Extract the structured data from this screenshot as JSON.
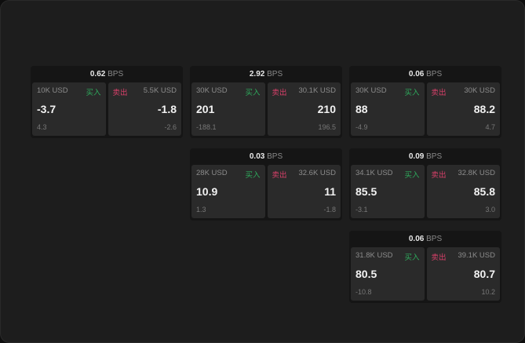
{
  "labels": {
    "buy": "买入",
    "sell": "卖出",
    "unit": "BPS"
  },
  "colors": {
    "buy": "#2eaa5c",
    "sell": "#d8406a"
  },
  "cards": [
    {
      "bps": "0.62",
      "buy": {
        "size": "10K USD",
        "price": "-3.7",
        "change": "4.3"
      },
      "sell": {
        "size": "5.5K USD",
        "price": "-1.8",
        "change": "-2.6"
      }
    },
    {
      "bps": "2.92",
      "buy": {
        "size": "30K USD",
        "price": "201",
        "change": "-188.1"
      },
      "sell": {
        "size": "30.1K USD",
        "price": "210",
        "change": "196.5"
      }
    },
    {
      "bps": "0.06",
      "buy": {
        "size": "30K USD",
        "price": "88",
        "change": "-4.9"
      },
      "sell": {
        "size": "30K USD",
        "price": "88.2",
        "change": "4.7"
      }
    },
    {
      "bps": "0.03",
      "buy": {
        "size": "28K USD",
        "price": "10.9",
        "change": "1.3"
      },
      "sell": {
        "size": "32.6K USD",
        "price": "11",
        "change": "-1.8"
      }
    },
    {
      "bps": "0.09",
      "buy": {
        "size": "34.1K USD",
        "price": "85.5",
        "change": "-3.1"
      },
      "sell": {
        "size": "32.8K USD",
        "price": "85.8",
        "change": "3.0"
      }
    },
    {
      "bps": "0.06",
      "buy": {
        "size": "31.8K USD",
        "price": "80.5",
        "change": "-10.8"
      },
      "sell": {
        "size": "39.1K USD",
        "price": "80.7",
        "change": "10.2"
      }
    }
  ]
}
